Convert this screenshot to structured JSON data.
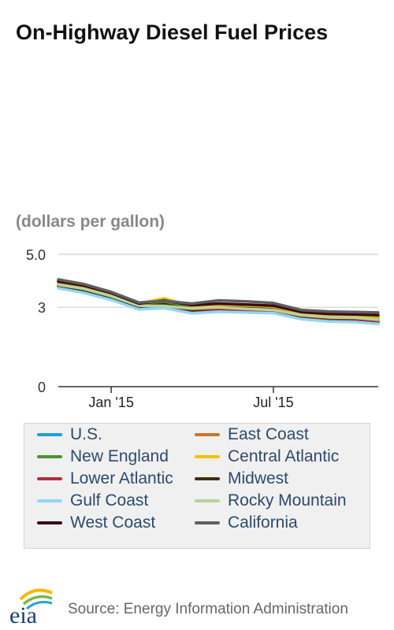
{
  "title": "On-Highway Diesel Fuel Prices",
  "unit_label": "(dollars per gallon)",
  "source": "Source: Energy Information Administration",
  "logo_text": "eia",
  "chart_data": {
    "type": "line",
    "title": "On-Highway Diesel Fuel Prices",
    "ylabel": "(dollars per gallon)",
    "xlabel": "",
    "ylim": [
      0,
      5
    ],
    "yticks": [
      {
        "value": 0,
        "label": "0"
      },
      {
        "value": 3,
        "label": "3"
      },
      {
        "value": 5,
        "label": "5.0"
      }
    ],
    "xlim": [
      "2014-11-03",
      "2015-10-26"
    ],
    "xticks": [
      {
        "value": "2015-01-01",
        "label": "Jan '15"
      },
      {
        "value": "2015-07-01",
        "label": "Jul '15"
      }
    ],
    "grid": true,
    "legend_position": "bottom",
    "x": [
      "2014-11-03",
      "2014-12-01",
      "2015-01-01",
      "2015-02-01",
      "2015-03-01",
      "2015-04-01",
      "2015-05-01",
      "2015-06-01",
      "2015-07-01",
      "2015-08-01",
      "2015-09-01",
      "2015-10-01",
      "2015-10-26"
    ],
    "series": [
      {
        "name": "U.S.",
        "color": "#1f9fd9",
        "values": [
          3.78,
          3.62,
          3.35,
          2.98,
          3.05,
          2.84,
          2.9,
          2.86,
          2.84,
          2.62,
          2.51,
          2.49,
          2.43
        ]
      },
      {
        "name": "East Coast",
        "color": "#c8742c",
        "values": [
          3.9,
          3.72,
          3.42,
          3.06,
          3.16,
          2.92,
          2.97,
          2.92,
          2.9,
          2.68,
          2.58,
          2.56,
          2.5
        ]
      },
      {
        "name": "New England",
        "color": "#4d9130",
        "values": [
          4.0,
          3.82,
          3.52,
          3.1,
          3.2,
          3.04,
          3.04,
          2.98,
          2.97,
          2.76,
          2.67,
          2.64,
          2.61
        ]
      },
      {
        "name": "Central Atlantic",
        "color": "#f5c000",
        "values": [
          3.98,
          3.8,
          3.5,
          3.15,
          3.34,
          3.05,
          3.08,
          3.0,
          2.98,
          2.79,
          2.7,
          2.68,
          2.65
        ]
      },
      {
        "name": "Lower Atlantic",
        "color": "#b22e3c",
        "values": [
          3.8,
          3.65,
          3.35,
          3.0,
          3.05,
          2.86,
          2.9,
          2.86,
          2.84,
          2.62,
          2.53,
          2.51,
          2.44
        ]
      },
      {
        "name": "Midwest",
        "color": "#3b3110",
        "values": [
          3.82,
          3.66,
          3.38,
          3.02,
          3.12,
          2.9,
          3.0,
          2.96,
          2.92,
          2.68,
          2.6,
          2.58,
          2.52
        ]
      },
      {
        "name": "Gulf Coast",
        "color": "#8fd8f5",
        "values": [
          3.72,
          3.55,
          3.28,
          2.92,
          2.97,
          2.77,
          2.83,
          2.8,
          2.78,
          2.55,
          2.46,
          2.44,
          2.37
        ]
      },
      {
        "name": "Rocky Mountain",
        "color": "#b6d3a0",
        "values": [
          3.85,
          3.7,
          3.42,
          3.06,
          3.05,
          2.95,
          3.0,
          2.94,
          2.9,
          2.7,
          2.62,
          2.6,
          2.53
        ]
      },
      {
        "name": "West Coast",
        "color": "#3a0a14",
        "values": [
          3.98,
          3.82,
          3.54,
          3.14,
          3.26,
          3.08,
          3.14,
          3.1,
          3.06,
          2.82,
          2.75,
          2.73,
          2.7
        ]
      },
      {
        "name": "California",
        "color": "#5f5f5f",
        "values": [
          4.05,
          3.88,
          3.58,
          3.18,
          3.24,
          3.14,
          3.26,
          3.22,
          3.16,
          2.9,
          2.84,
          2.82,
          2.8
        ]
      }
    ]
  }
}
